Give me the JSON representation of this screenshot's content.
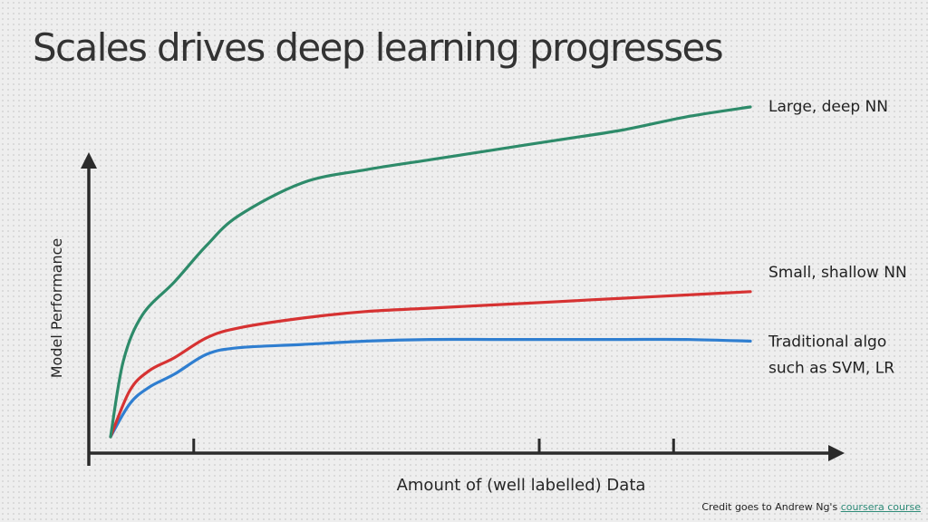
{
  "slide": {
    "title": "Scales drives deep learning progresses",
    "credit_prefix": "Credit goes to Andrew Ng's",
    "credit_link": "coursera course",
    "colors": {
      "link": "#2e8b78",
      "axis": "#2b2b2b"
    }
  },
  "chart_data": {
    "type": "line",
    "title": "",
    "xlabel": "Amount of (well labelled) Data",
    "ylabel": "Model Performance",
    "xlim": [
      0,
      100
    ],
    "ylim": [
      0,
      100
    ],
    "grid": false,
    "legend": "inline-right",
    "axis_ticks_x": [
      13,
      67,
      88
    ],
    "series": [
      {
        "name": "Large, deep NN",
        "color": "#2e8b6a",
        "x": [
          0,
          2,
          5,
          10,
          15,
          20,
          30,
          40,
          50,
          60,
          70,
          80,
          90,
          100
        ],
        "y": [
          0,
          23,
          37,
          47,
          58,
          67,
          77,
          81,
          84,
          87,
          90,
          93,
          97,
          100
        ]
      },
      {
        "name": "Small, shallow NN",
        "color": "#d63232",
        "x": [
          0,
          3,
          6,
          10,
          15,
          20,
          30,
          40,
          50,
          60,
          70,
          80,
          90,
          100
        ],
        "y": [
          0,
          14,
          20,
          24,
          30,
          33,
          36,
          38,
          39,
          40,
          41,
          42,
          43,
          44
        ]
      },
      {
        "name": "Traditional algo such as SVM, LR",
        "label_lines": [
          "Traditional algo",
          "such as SVM, LR"
        ],
        "color": "#2f7ed0",
        "x": [
          0,
          3,
          6,
          10,
          15,
          20,
          30,
          40,
          50,
          60,
          70,
          80,
          90,
          100
        ],
        "y": [
          0,
          10,
          15,
          19,
          25,
          27,
          28,
          29,
          29.5,
          29.5,
          29.5,
          29.5,
          29.5,
          29
        ]
      }
    ]
  }
}
